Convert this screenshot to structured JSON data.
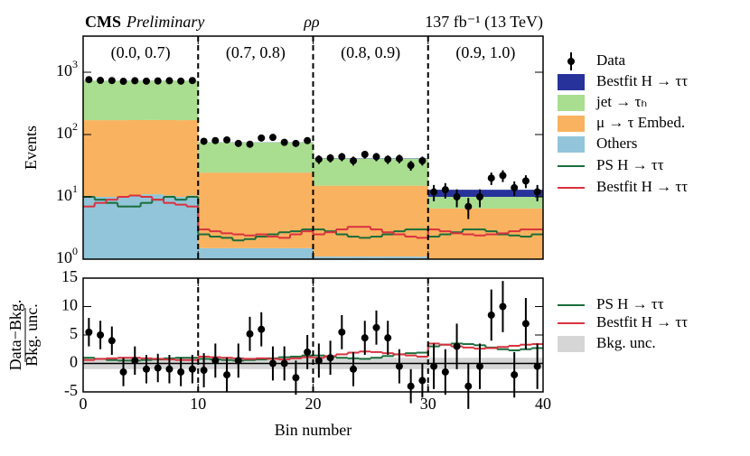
{
  "chart_data": [
    {
      "type": "stacked_histogram",
      "title": "CMS",
      "subtitle": "Preliminary",
      "channel": "ρρ",
      "lumi": "137 fb⁻¹ (13 TeV)",
      "ylabel": "Events",
      "ylog": true,
      "ylim": [
        1,
        3800
      ],
      "yticks": [
        {
          "value": 1,
          "label": "10^0"
        },
        {
          "value": 10,
          "label": "10^1"
        },
        {
          "value": 100,
          "label": "10^2"
        },
        {
          "value": 1000,
          "label": "10^3"
        }
      ],
      "xlim": [
        0,
        40
      ],
      "xticks": [
        0,
        10,
        20,
        30,
        40
      ],
      "dividers": [
        10,
        20,
        30
      ],
      "section_labels": [
        "(0.0, 0.7)",
        "(0.7, 0.8)",
        "(0.8, 0.9)",
        "(0.9, 1.0)"
      ],
      "bins": [
        0,
        1,
        2,
        3,
        4,
        5,
        6,
        7,
        8,
        9,
        10,
        11,
        12,
        13,
        14,
        15,
        16,
        17,
        18,
        19,
        20,
        21,
        22,
        23,
        24,
        25,
        26,
        27,
        28,
        29,
        30,
        31,
        32,
        33,
        34,
        35,
        36,
        37,
        38,
        39,
        40
      ],
      "stack": [
        {
          "name": "Others",
          "color": "#92c5da",
          "values": [
            10,
            10,
            10,
            10,
            10.5,
            11,
            11,
            10.5,
            10,
            10.5,
            1.5,
            1.5,
            1.5,
            1.5,
            1.5,
            1.5,
            1.5,
            1.5,
            1.5,
            1.5,
            1.1,
            1.1,
            1.1,
            1.1,
            1.1,
            1.1,
            1.1,
            1.1,
            1.1,
            1.1,
            1,
            1,
            1,
            1,
            1,
            1,
            1,
            1,
            1,
            1
          ]
        },
        {
          "name": "μ → τ Embed.",
          "color": "#f9b25f",
          "values": [
            160,
            160,
            160,
            160,
            160,
            160,
            160,
            160,
            160,
            160,
            23,
            23,
            23,
            23,
            23,
            23,
            23,
            23,
            23,
            23,
            14,
            14,
            14,
            14,
            14,
            14,
            14,
            14,
            14,
            14,
            5.5,
            5.5,
            5.5,
            5.5,
            5.5,
            5.5,
            5.5,
            5.5,
            5.5,
            5.5
          ]
        },
        {
          "name": "jet → τₕ",
          "color": "#a9dd8f",
          "values": [
            560,
            560,
            560,
            560,
            560,
            560,
            560,
            560,
            560,
            560,
            50,
            50,
            50,
            50,
            50,
            50,
            50,
            50,
            50,
            50,
            26,
            26,
            26,
            26,
            26,
            26,
            26,
            26,
            26,
            26,
            3.5,
            3.5,
            3.5,
            3.5,
            3.5,
            3.5,
            3.5,
            3.5,
            3.5,
            3.5
          ]
        },
        {
          "name": "Bestfit H → ττ",
          "color": "#27339a",
          "values": [
            2,
            2,
            2,
            2,
            2,
            2,
            2,
            2,
            2,
            2,
            0.5,
            0.5,
            0.5,
            0.5,
            0.5,
            0.5,
            0.5,
            0.5,
            0.5,
            0.5,
            0.5,
            0.5,
            0.5,
            0.5,
            0.5,
            0.5,
            0.5,
            0.5,
            0.5,
            0.5,
            3,
            3,
            3,
            3,
            3,
            3,
            3,
            3,
            3,
            3
          ]
        }
      ],
      "data": {
        "name": "Data",
        "color": "#000000",
        "values": [
          760,
          740,
          735,
          715,
          730,
          720,
          725,
          730,
          720,
          735,
          78,
          80,
          82,
          72,
          70,
          88,
          90,
          75,
          72,
          80,
          40,
          42,
          44,
          38,
          48,
          44,
          40,
          41,
          32,
          38,
          12,
          13,
          10,
          7,
          10,
          20,
          22,
          14,
          18,
          12
        ],
        "errors": [
          27,
          27,
          27,
          27,
          27,
          27,
          27,
          27,
          27,
          27,
          9,
          9,
          9,
          8.5,
          8.5,
          9.5,
          9.5,
          8.7,
          8.5,
          9,
          6.3,
          6.5,
          6.6,
          6.2,
          6.9,
          6.6,
          6.3,
          6.4,
          5.7,
          6.2,
          3.5,
          3.6,
          3.2,
          2.6,
          3.2,
          4.5,
          4.7,
          3.7,
          4.2,
          3.5
        ]
      },
      "lines": [
        {
          "name": "PS H → ττ",
          "color": "#1b6d3b",
          "values": [
            10,
            9,
            8,
            7,
            7,
            8,
            9,
            10,
            9,
            10,
            2.5,
            2.3,
            2.2,
            2.0,
            2.1,
            2.3,
            2.5,
            2.7,
            2.8,
            3.0,
            3,
            2.8,
            2.5,
            2.3,
            2.2,
            2.3,
            2.5,
            2.8,
            3,
            3,
            2.3,
            2.5,
            2.7,
            3,
            3,
            2.8,
            2.5,
            2.4,
            2.3,
            2.5
          ]
        },
        {
          "name": "Bestfit H → ττ",
          "color": "#d9323f",
          "values": [
            7,
            8,
            9,
            10,
            10.5,
            10,
            9,
            8,
            7.5,
            7,
            3,
            2.8,
            2.6,
            2.5,
            2.4,
            2.5,
            2.3,
            2.2,
            2.5,
            2.8,
            2.5,
            2.7,
            3,
            3.3,
            3.3,
            3,
            2.7,
            2.5,
            2.3,
            2.2,
            3,
            2.8,
            2.6,
            2.5,
            2.4,
            2.5,
            2.6,
            2.8,
            3,
            3
          ]
        }
      ]
    },
    {
      "type": "ratio",
      "ylabel_numerator": "Data−Bkg.",
      "ylabel_denominator": "Bkg. unc.",
      "xlabel": "Bin number",
      "ylim": [
        -5,
        15
      ],
      "yticks": [
        -5,
        0,
        5,
        10,
        15
      ],
      "xlim": [
        0,
        40
      ],
      "xticks": [
        0,
        10,
        20,
        30,
        40
      ],
      "dividers": [
        10,
        20,
        30
      ],
      "hline": 0,
      "band": {
        "name": "Bkg. unc.",
        "color": "#d6d6d6",
        "lower": -1,
        "upper": 1
      },
      "data": {
        "color": "#000000",
        "values": [
          5.5,
          5,
          4,
          -1.5,
          0.5,
          -1,
          -0.8,
          -1,
          -1.5,
          -1,
          -1.2,
          0.5,
          -2,
          0.5,
          5.2,
          6,
          0,
          0,
          -2.5,
          2,
          0.5,
          1,
          5.5,
          -1,
          4.5,
          6.3,
          4.5,
          -0.5,
          -4,
          -3,
          -0.5,
          -1.5,
          3,
          -4,
          -0.5,
          8.5,
          10,
          -2,
          7,
          -0.5
        ],
        "errors": [
          2.5,
          2.5,
          2.5,
          2.5,
          2.5,
          2.5,
          2.5,
          2.5,
          2.5,
          2.5,
          3,
          3,
          3,
          3,
          3,
          3,
          3,
          3,
          3,
          3,
          3,
          3,
          3,
          3,
          3,
          3,
          3,
          3,
          3,
          3,
          4,
          4,
          4,
          4,
          4,
          4.5,
          4.5,
          4,
          4.5,
          4
        ]
      },
      "lines": [
        {
          "name": "PS H → ττ",
          "color": "#1b6d3b",
          "values": [
            1,
            0.8,
            0.6,
            0.5,
            0.5,
            0.6,
            0.7,
            0.9,
            1,
            1,
            0.8,
            0.7,
            0.6,
            0.5,
            0.6,
            0.7,
            0.9,
            1.1,
            1.2,
            1.4,
            1.4,
            1.2,
            1,
            0.9,
            0.8,
            1,
            1.3,
            1.6,
            1.8,
            1.9,
            3,
            3.3,
            3.5,
            3.4,
            3.2,
            2.8,
            2.5,
            2.3,
            2.5,
            2.7
          ]
        },
        {
          "name": "Bestfit H → ττ",
          "color": "#d9323f",
          "values": [
            0.6,
            0.8,
            0.9,
            1,
            1,
            0.9,
            0.8,
            0.7,
            0.6,
            0.6,
            1.2,
            1.1,
            1,
            0.9,
            0.8,
            0.9,
            0.8,
            0.7,
            0.9,
            1.1,
            1,
            1.3,
            1.6,
            1.9,
            2.1,
            2,
            1.8,
            1.6,
            1.4,
            1.2,
            3.5,
            3.3,
            3,
            2.8,
            2.6,
            2.7,
            2.9,
            3.1,
            3.3,
            3.4
          ]
        }
      ]
    }
  ]
}
